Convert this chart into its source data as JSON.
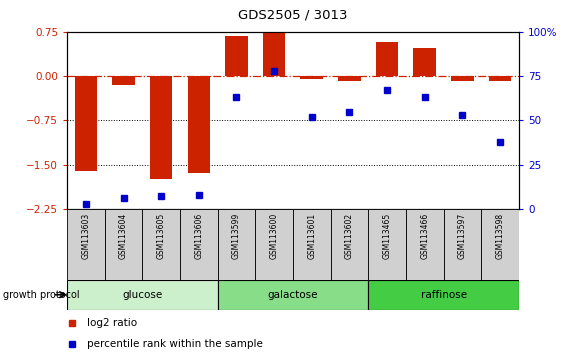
{
  "title": "GDS2505 / 3013",
  "samples": [
    "GSM113603",
    "GSM113604",
    "GSM113605",
    "GSM113606",
    "GSM113599",
    "GSM113600",
    "GSM113601",
    "GSM113602",
    "GSM113465",
    "GSM113466",
    "GSM113597",
    "GSM113598"
  ],
  "log2_ratio": [
    -1.6,
    -0.15,
    -1.75,
    -1.65,
    0.68,
    0.75,
    -0.05,
    -0.08,
    0.58,
    0.48,
    -0.08,
    -0.08
  ],
  "percentile_rank": [
    3,
    6,
    7,
    8,
    63,
    78,
    52,
    55,
    67,
    63,
    53,
    38
  ],
  "groups": [
    {
      "label": "glucose",
      "start": 0,
      "end": 4,
      "color": "#ccf0cc"
    },
    {
      "label": "galactose",
      "start": 4,
      "end": 8,
      "color": "#88dd88"
    },
    {
      "label": "raffinose",
      "start": 8,
      "end": 12,
      "color": "#44cc44"
    }
  ],
  "ylim_left": [
    -2.25,
    0.75
  ],
  "ylim_right": [
    0,
    100
  ],
  "yticks_left": [
    0.75,
    0,
    -0.75,
    -1.5,
    -2.25
  ],
  "yticks_right": [
    100,
    75,
    50,
    25,
    0
  ],
  "bar_color": "#cc2200",
  "dot_color": "#0000cc",
  "dotted_lines": [
    -0.75,
    -1.5
  ],
  "background_color": "#ffffff",
  "legend_log2": "log2 ratio",
  "legend_pct": "percentile rank within the sample",
  "growth_label": "growth protocol"
}
